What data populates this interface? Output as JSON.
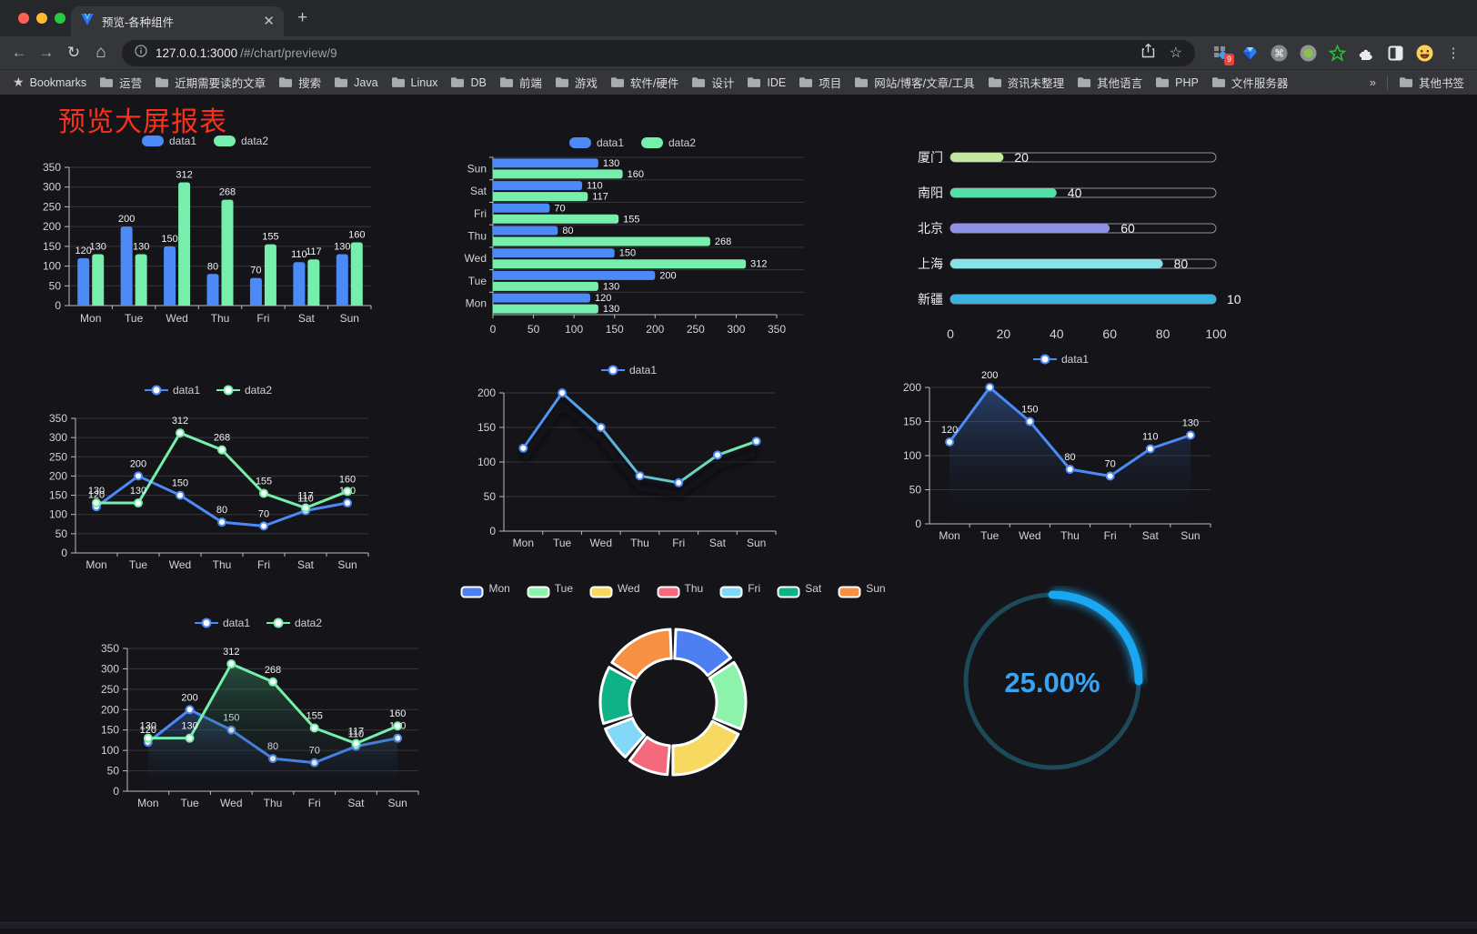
{
  "browser": {
    "tab_title": "预览-各种组件",
    "url_host": "127.0.0.1:3000",
    "url_path": "/#/chart/preview/9",
    "extension_badge": "9",
    "bookmarks_label": "Bookmarks",
    "bookmark_folders": [
      "运营",
      "近期需要读的文章",
      "搜索",
      "Java",
      "Linux",
      "DB",
      "前端",
      "游戏",
      "软件/硬件",
      "设计",
      "IDE",
      "项目",
      "网站/博客/文章/工具",
      "资讯未整理",
      "其他语言",
      "PHP",
      "文件服务器"
    ],
    "bookmarks_overflow": "»",
    "other_bookmarks": "其他书签"
  },
  "page": {
    "title": "预览大屏报表"
  },
  "chart_data": [
    {
      "id": "bar-vertical",
      "type": "bar",
      "categories": [
        "Mon",
        "Tue",
        "Wed",
        "Thu",
        "Fri",
        "Sat",
        "Sun"
      ],
      "series": [
        {
          "name": "data1",
          "color": "#4c8af8",
          "values": [
            120,
            200,
            150,
            80,
            70,
            110,
            130
          ]
        },
        {
          "name": "data2",
          "color": "#76efad",
          "values": [
            130,
            130,
            312,
            268,
            155,
            117,
            160
          ]
        }
      ],
      "ylim": [
        0,
        350
      ],
      "yticks": [
        0,
        50,
        100,
        150,
        200,
        250,
        300,
        350
      ],
      "grid": true,
      "value_labels": true,
      "legend_position": "top"
    },
    {
      "id": "bar-horizontal",
      "type": "bar-horizontal",
      "categories": [
        "Mon",
        "Tue",
        "Wed",
        "Thu",
        "Fri",
        "Sat",
        "Sun"
      ],
      "series": [
        {
          "name": "data1",
          "color": "#4c8af8",
          "values": [
            120,
            200,
            150,
            80,
            70,
            110,
            130
          ]
        },
        {
          "name": "data2",
          "color": "#76efad",
          "values": [
            130,
            130,
            312,
            268,
            155,
            117,
            160
          ]
        }
      ],
      "xlim": [
        0,
        350
      ],
      "xticks": [
        0,
        50,
        100,
        150,
        200,
        250,
        300,
        350
      ],
      "grid": true,
      "value_labels": true,
      "legend_position": "top"
    },
    {
      "id": "progress-bars",
      "type": "progress",
      "items": [
        {
          "label": "厦门",
          "value": 20,
          "color": "#c5e8a0"
        },
        {
          "label": "南阳",
          "value": 40,
          "color": "#54dfa6"
        },
        {
          "label": "北京",
          "value": 60,
          "color": "#8f90e8"
        },
        {
          "label": "上海",
          "value": 80,
          "color": "#87e3ea"
        },
        {
          "label": "新疆",
          "value": 100,
          "color": "#38b2e3"
        }
      ],
      "xticks": [
        0,
        20,
        40,
        60,
        80,
        100
      ]
    },
    {
      "id": "line-basic",
      "type": "line",
      "categories": [
        "Mon",
        "Tue",
        "Wed",
        "Thu",
        "Fri",
        "Sat",
        "Sun"
      ],
      "series": [
        {
          "name": "data1",
          "color": "#4c8af8",
          "values": [
            120,
            200,
            150,
            80,
            70,
            110,
            130
          ]
        },
        {
          "name": "data2",
          "color": "#76efad",
          "values": [
            130,
            130,
            312,
            268,
            155,
            117,
            160
          ]
        }
      ],
      "ylim": [
        0,
        350
      ],
      "yticks": [
        0,
        50,
        100,
        150,
        200,
        250,
        300,
        350
      ],
      "value_labels": true,
      "legend_position": "top"
    },
    {
      "id": "line-gradient",
      "type": "line-gradient",
      "categories": [
        "Mon",
        "Tue",
        "Wed",
        "Thu",
        "Fri",
        "Sat",
        "Sun"
      ],
      "series": [
        {
          "name": "data1",
          "color_start": "#4c8af8",
          "color_end": "#76efad",
          "marker_color": "#4c8af8",
          "values": [
            120,
            200,
            150,
            80,
            70,
            110,
            130
          ]
        }
      ],
      "ylim": [
        0,
        200
      ],
      "yticks": [
        0,
        50,
        100,
        150,
        200
      ],
      "value_labels": false,
      "legend_position": "top"
    },
    {
      "id": "line-area-single",
      "type": "line-area",
      "categories": [
        "Mon",
        "Tue",
        "Wed",
        "Thu",
        "Fri",
        "Sat",
        "Sun"
      ],
      "series": [
        {
          "name": "data1",
          "color": "#4c8af8",
          "fill": "rgba(60,110,190,0.5)",
          "values": [
            120,
            200,
            150,
            80,
            70,
            110,
            130
          ]
        }
      ],
      "ylim": [
        0,
        200
      ],
      "yticks": [
        0,
        50,
        100,
        150,
        200
      ],
      "value_labels": true,
      "legend_position": "top"
    },
    {
      "id": "line-area-double",
      "type": "line-area",
      "categories": [
        "Mon",
        "Tue",
        "Wed",
        "Thu",
        "Fri",
        "Sat",
        "Sun"
      ],
      "series": [
        {
          "name": "data1",
          "color": "#4c8af8",
          "fill": "rgba(60,110,190,0.42)",
          "values": [
            120,
            200,
            150,
            80,
            70,
            110,
            130
          ]
        },
        {
          "name": "data2",
          "color": "#76efad",
          "fill": "rgba(60,160,110,0.42)",
          "values": [
            130,
            130,
            312,
            268,
            155,
            117,
            160
          ]
        }
      ],
      "ylim": [
        0,
        350
      ],
      "yticks": [
        0,
        50,
        100,
        150,
        200,
        250,
        300,
        350
      ],
      "value_labels": true,
      "legend_position": "top"
    },
    {
      "id": "pie-donut",
      "type": "pie",
      "items": [
        {
          "name": "Mon",
          "value": 120,
          "color": "#4d7ef2"
        },
        {
          "name": "Tue",
          "value": 130,
          "color": "#8cf2ac"
        },
        {
          "name": "Wed",
          "value": 150,
          "color": "#f7d860"
        },
        {
          "name": "Thu",
          "value": 80,
          "color": "#f4697c"
        },
        {
          "name": "Fri",
          "value": 70,
          "color": "#82d8f7"
        },
        {
          "name": "Sat",
          "value": 110,
          "color": "#0fb287"
        },
        {
          "name": "Sun",
          "value": 130,
          "color": "#f79043"
        }
      ],
      "legend_position": "top",
      "inner_radius": 0.6
    },
    {
      "id": "gauge",
      "type": "gauge",
      "value_percent": 25,
      "label": "25.00%",
      "color": "#1aa7f2",
      "track_color": "#1d4a58",
      "text_color": "#3aa4f4"
    }
  ]
}
